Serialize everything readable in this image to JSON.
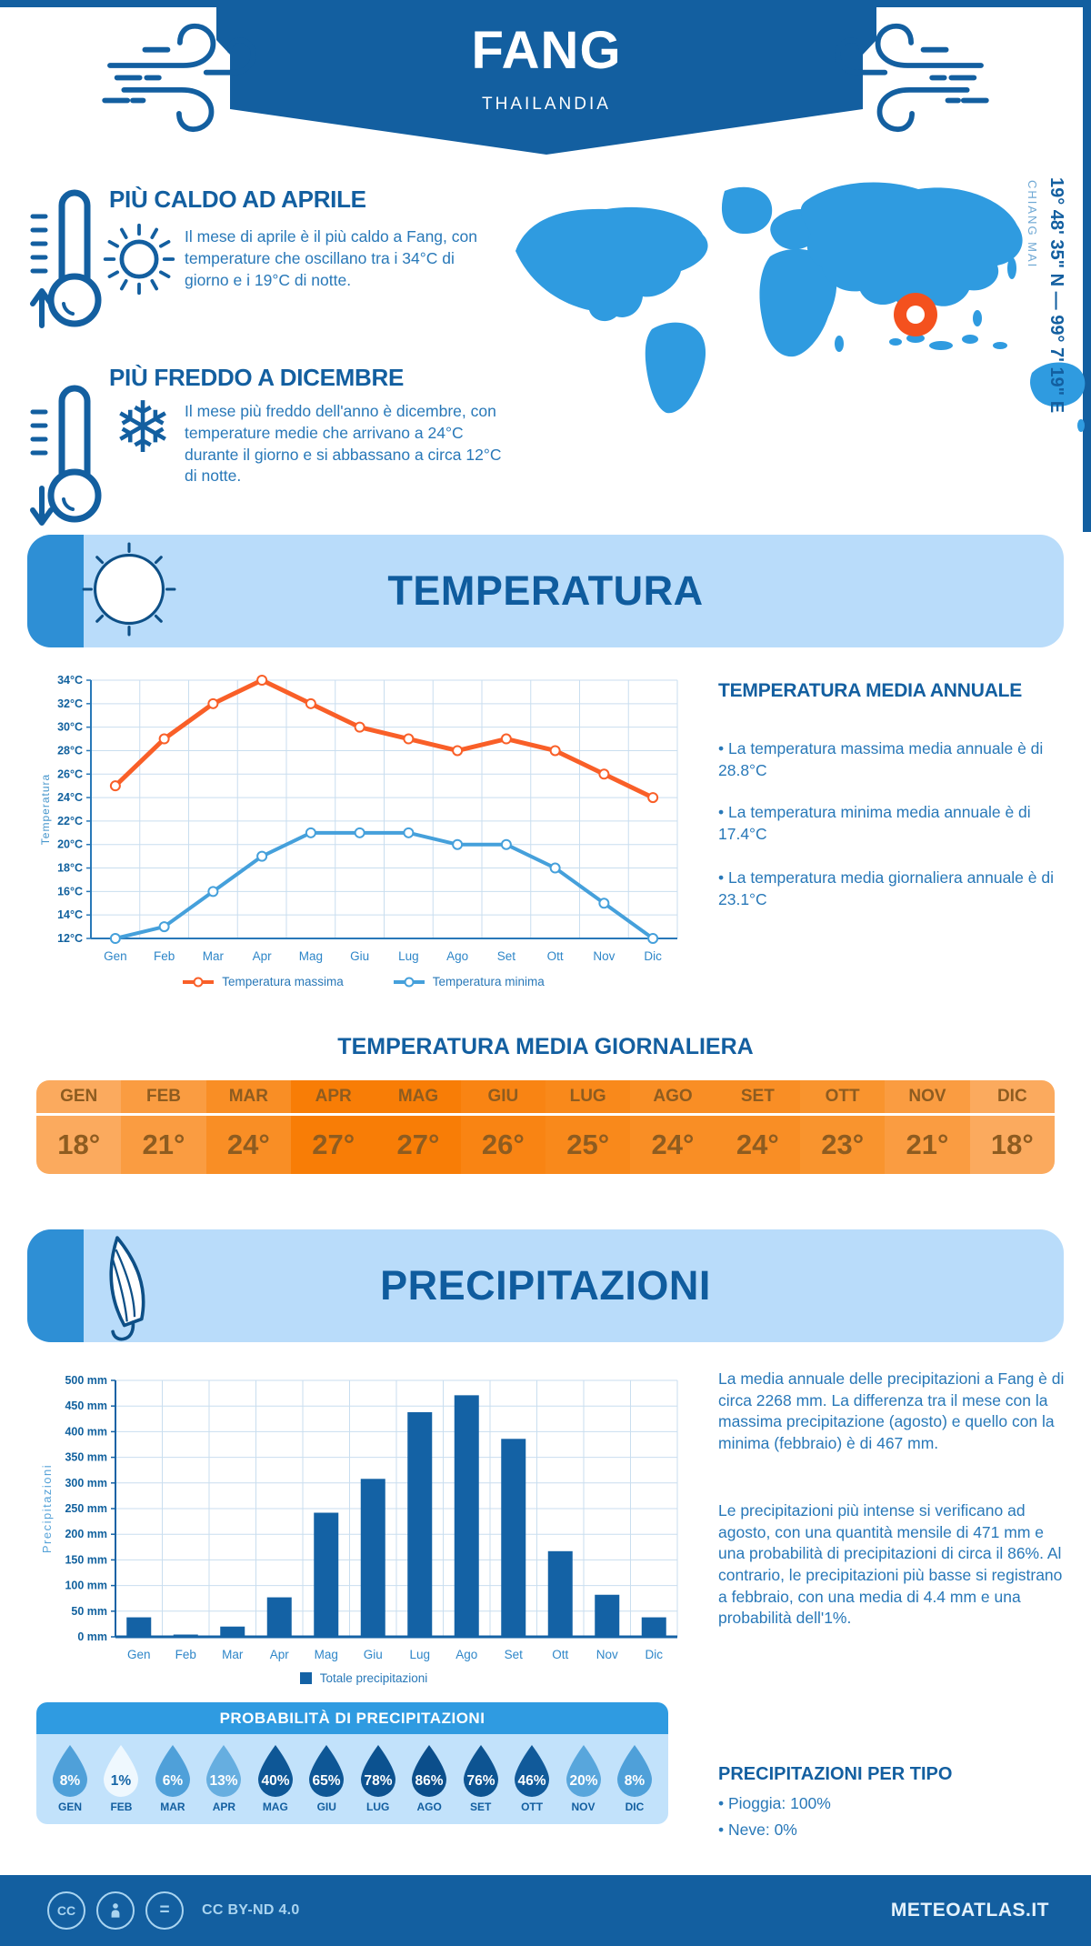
{
  "header": {
    "title": "FANG",
    "subtitle": "THAILANDIA"
  },
  "location": {
    "coordinates": "19° 48' 35\" N — 99° 7' 19\" E",
    "region": "CHIANG MAI"
  },
  "highlights": {
    "hot": {
      "title": "PIÙ CALDO AD APRILE",
      "text": "Il mese di aprile è il più caldo a Fang, con temperature che oscillano tra i 34°C di giorno e i 19°C di notte."
    },
    "cold": {
      "title": "PIÙ FREDDO A DICEMBRE",
      "text": "Il mese più freddo dell'anno è dicembre, con temperature medie che arrivano a 24°C durante il giorno e si abbassano a circa 12°C di notte."
    }
  },
  "temperature_section": {
    "banner": "TEMPERATURA",
    "annual": {
      "heading": "TEMPERATURA MEDIA ANNUALE",
      "bullets": [
        "• La temperatura massima media annuale è di 28.8°C",
        "• La temperatura minima media annuale è di 17.4°C",
        "• La temperatura media giornaliera annuale è di 23.1°C"
      ]
    },
    "daily_heading": "TEMPERATURA MEDIA GIORNALIERA",
    "monthly_avg": {
      "months": [
        "GEN",
        "FEB",
        "MAR",
        "APR",
        "MAG",
        "GIU",
        "LUG",
        "AGO",
        "SET",
        "OTT",
        "NOV",
        "DIC"
      ],
      "values": [
        "18°",
        "21°",
        "24°",
        "27°",
        "27°",
        "26°",
        "25°",
        "24°",
        "24°",
        "23°",
        "21°",
        "18°"
      ],
      "colors": [
        "#FBAA5E",
        "#FA9C41",
        "#F98E25",
        "#F87D06",
        "#F87D06",
        "#F98413",
        "#F9891B",
        "#F98E25",
        "#F98E25",
        "#F9942E",
        "#FA9C41",
        "#FBAA5E"
      ]
    }
  },
  "precipitation_section": {
    "banner": "PRECIPITAZIONI",
    "paragraphs": [
      "La media annuale delle precipitazioni a Fang è di circa 2268 mm. La differenza tra il mese con la massima precipitazione (agosto) e quello con la minima (febbraio) è di 467 mm.",
      "Le precipitazioni più intense si verificano ad agosto, con una quantità mensile di 471 mm e una probabilità di precipitazioni di circa il 86%. Al contrario, le precipitazioni più basse si registrano a febbraio, con una media di 4.4 mm e una probabilità dell'1%."
    ],
    "probability": {
      "heading": "PROBABILITÀ DI PRECIPITAZIONI",
      "months": [
        "GEN",
        "FEB",
        "MAR",
        "APR",
        "MAG",
        "GIU",
        "LUG",
        "AGO",
        "SET",
        "OTT",
        "NOV",
        "DIC"
      ],
      "values": [
        "8%",
        "1%",
        "6%",
        "13%",
        "40%",
        "65%",
        "78%",
        "86%",
        "76%",
        "46%",
        "20%",
        "8%"
      ],
      "colors": [
        "#4FA0D9",
        "#EFF8FE",
        "#4FA0D9",
        "#66AEE0",
        "#0E5796",
        "#0E5796",
        "#0C5290",
        "#0B4E8B",
        "#0D5492",
        "#115A9A",
        "#58A6DC",
        "#4FA0D9"
      ],
      "text_colors": [
        "#FFFFFF",
        "#1565A6",
        "#FFFFFF",
        "#FFFFFF",
        "#FFFFFF",
        "#FFFFFF",
        "#FFFFFF",
        "#FFFFFF",
        "#FFFFFF",
        "#FFFFFF",
        "#FFFFFF",
        "#FFFFFF"
      ]
    },
    "by_type": {
      "heading": "PRECIPITAZIONI PER TIPO",
      "bullets": [
        "• Pioggia: 100%",
        "• Neve: 0%"
      ]
    }
  },
  "chart_data": [
    {
      "type": "line",
      "categories": [
        "Gen",
        "Feb",
        "Mar",
        "Apr",
        "Mag",
        "Giu",
        "Lug",
        "Ago",
        "Set",
        "Ott",
        "Nov",
        "Dic"
      ],
      "series": [
        {
          "name": "Temperatura massima",
          "color": "#F95F28",
          "values": [
            25,
            29,
            32,
            34,
            32,
            30,
            29,
            28,
            29,
            28,
            26,
            24
          ]
        },
        {
          "name": "Temperatura minima",
          "color": "#45A0DB",
          "values": [
            12,
            13,
            16,
            19,
            21,
            21,
            21,
            20,
            20,
            18,
            15,
            12
          ]
        }
      ],
      "ylabel": "Temperatura",
      "xlabel": "",
      "ylim": [
        12,
        34
      ],
      "ytick_step": 2,
      "ytick_suffix": "°C",
      "grid": true,
      "legend_position": "bottom"
    },
    {
      "type": "bar",
      "categories": [
        "Gen",
        "Feb",
        "Mar",
        "Apr",
        "Mag",
        "Giu",
        "Lug",
        "Ago",
        "Set",
        "Ott",
        "Nov",
        "Dic"
      ],
      "series": [
        {
          "name": "Totale precipitazioni",
          "color": "#1462A5",
          "values": [
            38,
            4.4,
            20,
            77,
            242,
            308,
            438,
            471,
            386,
            167,
            82,
            38
          ]
        }
      ],
      "ylabel": "Precipitazioni",
      "xlabel": "",
      "ylim": [
        0,
        500
      ],
      "ytick_step": 50,
      "ytick_suffix": " mm",
      "grid": true,
      "legend_position": "bottom"
    }
  ],
  "palette": {
    "primary": "#135FA0",
    "body_text": "#2878B8",
    "map_blue": "#2F9BE0",
    "marker_orange": "#F4511E",
    "banner_bg": "#B9DCFA",
    "banner_accent": "#2E8FD5",
    "grid": "#C9DEEF"
  },
  "footer": {
    "license": "CC BY-ND 4.0",
    "site": "METEOATLAS.IT"
  }
}
